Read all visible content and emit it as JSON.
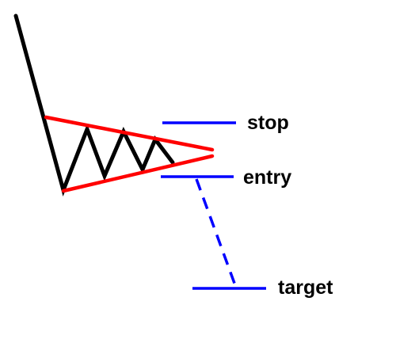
{
  "diagram": {
    "labels": {
      "stop": "stop",
      "entry": "entry",
      "target": "target"
    },
    "colors": {
      "price": "#000000",
      "trendlines": "#ff0000",
      "levels": "#0000ff",
      "background": "#ffffff"
    }
  }
}
